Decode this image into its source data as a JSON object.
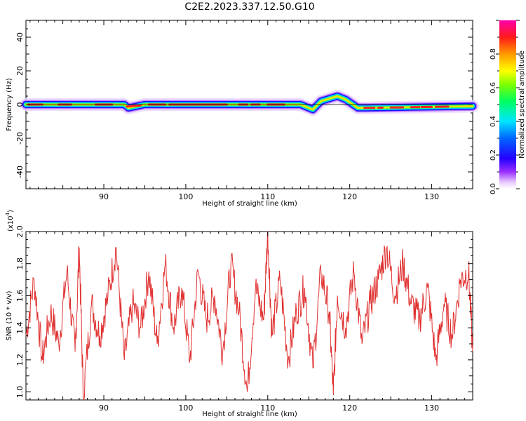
{
  "title": "C2E2.2023.337.12.50.G10",
  "chart_data": [
    {
      "type": "heatmap",
      "xlabel": "Height of straight line (km)",
      "ylabel": "Frequency (Hz)",
      "xlim": [
        80.5,
        135
      ],
      "ylim": [
        -50,
        50
      ],
      "x_ticks": [
        "90",
        "100",
        "110",
        "120",
        "130"
      ],
      "y_ticks": [
        "40",
        "20",
        "0",
        "-20",
        "-40"
      ],
      "colorbar": {
        "label": "Normalized spectral amplitude",
        "range": [
          0.0,
          1.0
        ],
        "ticks": [
          "0.0",
          "0.2",
          "0.4",
          "0.6",
          "0.8"
        ]
      },
      "ridge": {
        "description_x": [
          80.5,
          92.5,
          93,
          95,
          100,
          105,
          110,
          114,
          115.5,
          116.5,
          118.5,
          119.5,
          121,
          122,
          135
        ],
        "frequency": [
          0,
          0,
          -2,
          0,
          0,
          0,
          0,
          0,
          -3,
          2,
          5,
          3,
          -2,
          -2,
          -1
        ]
      }
    },
    {
      "type": "line",
      "xlabel": "Height of straight line (km)",
      "ylabel": "SNR (10 * v/v)",
      "scale_label": "(x10",
      "scale_exp": "4",
      "xlim": [
        80.5,
        135
      ],
      "ylim": [
        0.95,
        2.0
      ],
      "x_ticks": [
        "90",
        "100",
        "110",
        "120",
        "130"
      ],
      "y_ticks": [
        "2.0",
        "1.8",
        "1.6",
        "1.4",
        "1.2",
        "1.0"
      ],
      "line_color": "#e03030",
      "series": [
        {
          "x": [
            80.5,
            81.5,
            82.5,
            83.5,
            84.5,
            85.5,
            86.5,
            87.0,
            87.5,
            88.5,
            89.5,
            90.5,
            91.5,
            92.5,
            93.5,
            94.5,
            95.5,
            96.5,
            97.5,
            98.5,
            99.5,
            100.5,
            101.5,
            102.5,
            103.5,
            104.5,
            105.5,
            106.5,
            107.5,
            108.5,
            109.5,
            110.0,
            110.5,
            111.5,
            112.5,
            113.5,
            114.5,
            115.5,
            116.5,
            117.5,
            118.0,
            118.5,
            119.5,
            120.5,
            121.5,
            122.5,
            123.5,
            124.5,
            125.5,
            126.5,
            127.5,
            128.5,
            129.5,
            130.5,
            131.5,
            132.5,
            133.5,
            134.5,
            135.0
          ],
          "values": [
            1.35,
            1.7,
            1.2,
            1.5,
            1.3,
            1.75,
            1.25,
            1.9,
            0.97,
            1.55,
            1.35,
            1.6,
            1.9,
            1.2,
            1.55,
            1.4,
            1.75,
            1.3,
            1.8,
            1.4,
            1.65,
            1.2,
            1.75,
            1.45,
            1.6,
            1.25,
            1.8,
            1.5,
            1.0,
            1.65,
            1.45,
            2.0,
            1.35,
            1.7,
            1.2,
            1.5,
            1.65,
            1.15,
            1.75,
            1.5,
            0.98,
            1.6,
            1.4,
            1.75,
            1.3,
            1.55,
            1.7,
            1.9,
            1.6,
            1.8,
            1.55,
            1.45,
            1.65,
            1.2,
            1.55,
            1.35,
            1.7,
            1.75,
            1.25
          ]
        }
      ]
    }
  ]
}
